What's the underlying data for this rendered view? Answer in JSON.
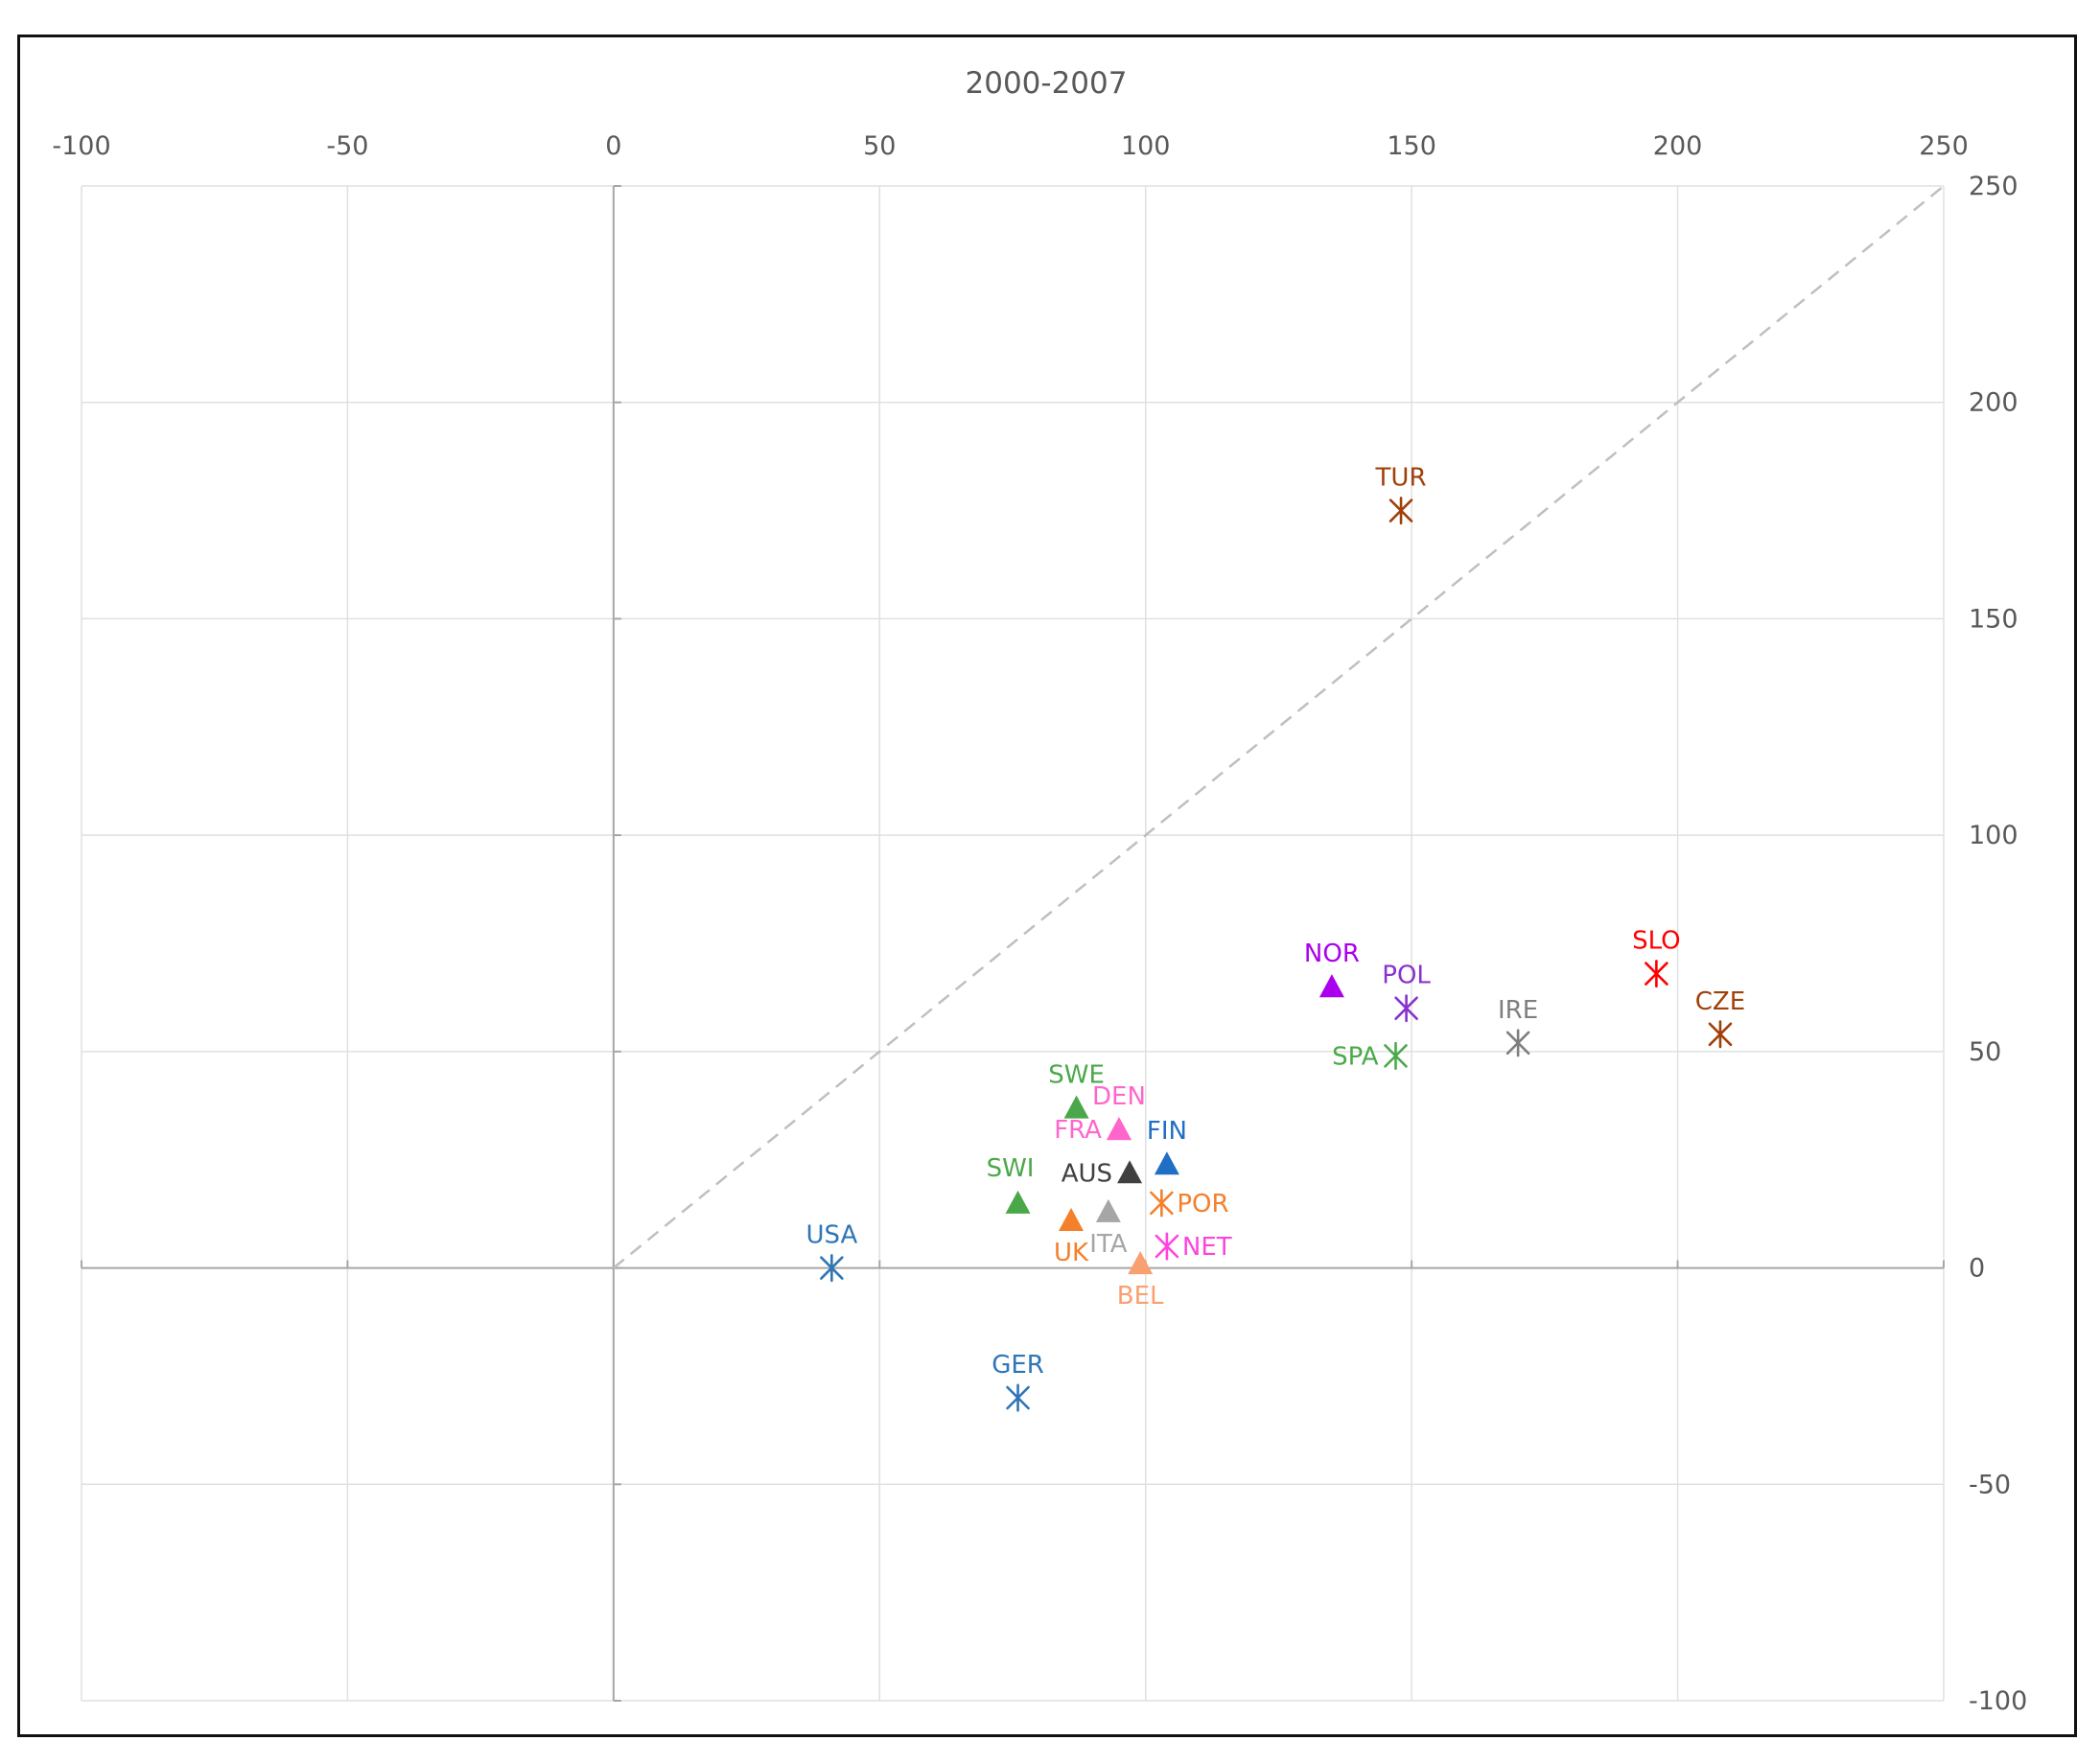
{
  "chart_data": {
    "type": "scatter",
    "title": "2000-2007",
    "xlabel": "",
    "ylabel": "",
    "xlim": [
      -100,
      250
    ],
    "ylim": [
      -100,
      250
    ],
    "x_ticks": [
      -100,
      -50,
      0,
      50,
      100,
      150,
      200,
      250
    ],
    "y_ticks": [
      250,
      200,
      150,
      100,
      50,
      0,
      -50,
      -100
    ],
    "x_axis_position": "top",
    "y_axis_position": "right",
    "grid": true,
    "reference_line": {
      "type": "diagonal",
      "from": [
        0,
        0
      ],
      "to": [
        250,
        250
      ],
      "style": "dashed",
      "color": "#bfbfbf"
    },
    "points": [
      {
        "label": "USA",
        "x": 41,
        "y": 0,
        "marker": "star",
        "color": "#2e75b6",
        "label_pos": "above"
      },
      {
        "label": "GER",
        "x": 76,
        "y": -30,
        "marker": "star",
        "color": "#2e75b6",
        "label_pos": "above"
      },
      {
        "label": "SWI",
        "x": 76,
        "y": 15,
        "marker": "triangle",
        "color": "#4aa84a",
        "label_pos": "above-left"
      },
      {
        "label": "SWE",
        "x": 87,
        "y": 37,
        "marker": "triangle",
        "color": "#4aa84a",
        "label_pos": "above"
      },
      {
        "label": "DEN",
        "x": 95,
        "y": 32,
        "marker": "triangle",
        "color": "#ff66cc",
        "label_pos": "above"
      },
      {
        "label": "FRA",
        "x": 95,
        "y": 32,
        "marker": "triangle",
        "color": "#ff66cc",
        "label_pos": "left"
      },
      {
        "label": "FIN",
        "x": 104,
        "y": 24,
        "marker": "triangle",
        "color": "#1f6fc4",
        "label_pos": "above"
      },
      {
        "label": "AUS",
        "x": 97,
        "y": 22,
        "marker": "triangle",
        "color": "#404040",
        "label_pos": "left"
      },
      {
        "label": "UK",
        "x": 86,
        "y": 11,
        "marker": "triangle",
        "color": "#f4802b",
        "label_pos": "below"
      },
      {
        "label": "ITA",
        "x": 93,
        "y": 13,
        "marker": "triangle",
        "color": "#a6a6a6",
        "label_pos": "below"
      },
      {
        "label": "BEL",
        "x": 99,
        "y": 1,
        "marker": "triangle",
        "color": "#f8a070",
        "label_pos": "below"
      },
      {
        "label": "POR",
        "x": 103,
        "y": 15,
        "marker": "star",
        "color": "#f4802b",
        "label_pos": "right"
      },
      {
        "label": "NET",
        "x": 104,
        "y": 5,
        "marker": "star",
        "color": "#ff44dd",
        "label_pos": "right"
      },
      {
        "label": "NOR",
        "x": 135,
        "y": 65,
        "marker": "triangle",
        "color": "#aa00ee",
        "label_pos": "above"
      },
      {
        "label": "POL",
        "x": 149,
        "y": 60,
        "marker": "star",
        "color": "#8833cc",
        "label_pos": "above"
      },
      {
        "label": "SPA",
        "x": 147,
        "y": 49,
        "marker": "star",
        "color": "#4aa84a",
        "label_pos": "left"
      },
      {
        "label": "IRE",
        "x": 170,
        "y": 52,
        "marker": "star",
        "color": "#7f7f7f",
        "label_pos": "above"
      },
      {
        "label": "SLO",
        "x": 196,
        "y": 68,
        "marker": "star",
        "color": "#ff0000",
        "label_pos": "above"
      },
      {
        "label": "CZE",
        "x": 208,
        "y": 54,
        "marker": "star",
        "color": "#a0400a",
        "label_pos": "above"
      },
      {
        "label": "TUR",
        "x": 148,
        "y": 175,
        "marker": "star",
        "color": "#a0400a",
        "label_pos": "above"
      }
    ]
  },
  "colors": {
    "grid": "#e0e0e0",
    "axis": "#a6a6a6",
    "text": "#595959",
    "frame": "#111111"
  }
}
